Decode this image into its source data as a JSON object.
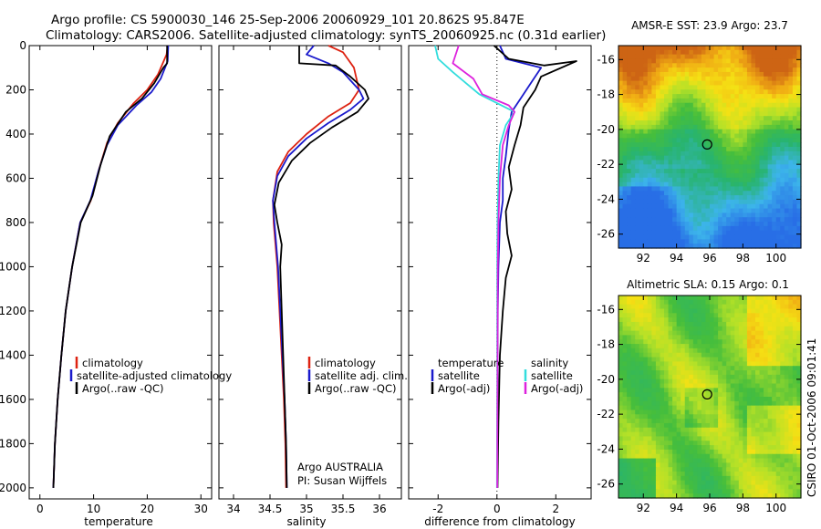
{
  "header": {
    "line1": "Argo profile: CS 5900030_146 25-Sep-2006 20060929_101 20.862S 95.847E",
    "line2": "Climatology: CARS2006. Satellite-adjusted climatology: synTS_20060925.nc (0.31d earlier)"
  },
  "colors": {
    "climatology": "#dd2211",
    "satellite": "#1a1acc",
    "argo": "#000000",
    "salinity_satellite": "#33dddd",
    "salinity_argo": "#dd22dd"
  },
  "chart_data": [
    {
      "type": "line",
      "xlabel": "temperature",
      "ylabel": "",
      "xlim": [
        -2,
        32
      ],
      "ylim": [
        2050,
        0
      ],
      "xticks": [
        "0",
        "10",
        "20",
        "30"
      ],
      "yticks": [
        "0",
        "200",
        "400",
        "600",
        "800",
        "1000",
        "1200",
        "1400",
        "1600",
        "1800",
        "2000"
      ],
      "legend": [
        "climatology",
        "satellite-adjusted climatology",
        "Argo(..raw -QC)"
      ],
      "legend_position": "lower-right",
      "series": [
        {
          "name": "climatology",
          "color": "climatology",
          "points": [
            [
              23.8,
              0
            ],
            [
              23.6,
              40
            ],
            [
              22,
              130
            ],
            [
              20,
              200
            ],
            [
              17.5,
              260
            ],
            [
              14.5,
              350
            ],
            [
              12.5,
              440
            ],
            [
              11,
              560
            ],
            [
              9.5,
              700
            ],
            [
              7.5,
              800
            ],
            [
              6,
              1000
            ],
            [
              4.8,
              1200
            ],
            [
              4,
              1400
            ],
            [
              3.3,
              1600
            ],
            [
              2.8,
              1800
            ],
            [
              2.5,
              2000
            ]
          ]
        },
        {
          "name": "satellite-adjusted climatology",
          "color": "satellite",
          "points": [
            [
              23.9,
              0
            ],
            [
              23.8,
              70
            ],
            [
              22.5,
              150
            ],
            [
              20.8,
              210
            ],
            [
              18,
              270
            ],
            [
              14.5,
              360
            ],
            [
              12.5,
              450
            ],
            [
              11,
              560
            ],
            [
              9.4,
              700
            ],
            [
              7.5,
              800
            ],
            [
              6,
              1000
            ],
            [
              4.8,
              1200
            ],
            [
              4,
              1400
            ],
            [
              3.3,
              1600
            ],
            [
              2.8,
              1800
            ],
            [
              2.5,
              2000
            ]
          ]
        },
        {
          "name": "Argo(..raw -QC)",
          "color": "argo",
          "points": [
            [
              23.7,
              0
            ],
            [
              23.7,
              80
            ],
            [
              23,
              100
            ],
            [
              21.3,
              170
            ],
            [
              19,
              240
            ],
            [
              16,
              300
            ],
            [
              13,
              410
            ],
            [
              11.3,
              540
            ],
            [
              9.8,
              680
            ],
            [
              7.6,
              800
            ],
            [
              6,
              1000
            ],
            [
              4.8,
              1200
            ],
            [
              4,
              1400
            ],
            [
              3.3,
              1600
            ],
            [
              2.8,
              1800
            ],
            [
              2.5,
              2000
            ]
          ]
        }
      ]
    },
    {
      "type": "line",
      "xlabel": "salinity",
      "ylabel": "",
      "xlim": [
        33.8,
        36.3
      ],
      "ylim": [
        2050,
        0
      ],
      "xticks": [
        "34",
        "34.5",
        "35",
        "35.5",
        "36"
      ],
      "legend": [
        "climatology",
        "satellite adj. clim.",
        "Argo(..raw -QC)"
      ],
      "legend_position": "lower-right",
      "annotations": [
        "Argo AUSTRALIA",
        "PI: Susan Wijffels"
      ],
      "series": [
        {
          "name": "climatology",
          "color": "climatology",
          "points": [
            [
              35.3,
              0
            ],
            [
              35.5,
              30
            ],
            [
              35.65,
              100
            ],
            [
              35.72,
              200
            ],
            [
              35.6,
              260
            ],
            [
              35.3,
              320
            ],
            [
              35.0,
              400
            ],
            [
              34.75,
              480
            ],
            [
              34.6,
              570
            ],
            [
              34.54,
              700
            ],
            [
              34.55,
              800
            ],
            [
              34.6,
              1000
            ],
            [
              34.63,
              1200
            ],
            [
              34.66,
              1400
            ],
            [
              34.69,
              1600
            ],
            [
              34.71,
              1800
            ],
            [
              34.72,
              2000
            ]
          ]
        },
        {
          "name": "satellite adj. clim.",
          "color": "satellite",
          "points": [
            [
              35.1,
              0
            ],
            [
              35.0,
              40
            ],
            [
              35.3,
              80
            ],
            [
              35.5,
              120
            ],
            [
              35.72,
              200
            ],
            [
              35.78,
              240
            ],
            [
              35.6,
              290
            ],
            [
              35.3,
              350
            ],
            [
              35.0,
              420
            ],
            [
              34.75,
              500
            ],
            [
              34.6,
              590
            ],
            [
              34.54,
              700
            ],
            [
              34.56,
              800
            ],
            [
              34.61,
              1000
            ],
            [
              34.64,
              1200
            ],
            [
              34.67,
              1400
            ],
            [
              34.7,
              1600
            ],
            [
              34.72,
              1800
            ],
            [
              34.73,
              2000
            ]
          ]
        },
        {
          "name": "Argo(..raw -QC)",
          "color": "argo",
          "points": [
            [
              34.9,
              0
            ],
            [
              34.9,
              80
            ],
            [
              35.4,
              90
            ],
            [
              35.6,
              140
            ],
            [
              35.8,
              200
            ],
            [
              35.85,
              240
            ],
            [
              35.7,
              300
            ],
            [
              35.35,
              370
            ],
            [
              35.05,
              440
            ],
            [
              34.8,
              520
            ],
            [
              34.62,
              620
            ],
            [
              34.56,
              720
            ],
            [
              34.6,
              800
            ],
            [
              34.66,
              900
            ],
            [
              34.64,
              1000
            ],
            [
              34.66,
              1200
            ],
            [
              34.68,
              1400
            ],
            [
              34.7,
              1600
            ],
            [
              34.72,
              1800
            ],
            [
              34.73,
              2000
            ]
          ]
        }
      ]
    },
    {
      "type": "line",
      "xlabel": "difference from climatology",
      "ylabel": "",
      "xlim": [
        -3,
        3.2
      ],
      "ylim": [
        2050,
        0
      ],
      "xticks": [
        "-2",
        "0",
        "2"
      ],
      "zero_line": "dotted",
      "legend_groups": [
        {
          "heading": "temperature",
          "entries": [
            "satellite",
            "Argo(-adj)"
          ]
        },
        {
          "heading": "salinity",
          "entries": [
            "satellite",
            "Argo(-adj)"
          ]
        }
      ],
      "legend_position": "lower-right",
      "series": [
        {
          "name": "temperature satellite",
          "color": "satellite",
          "points": [
            [
              0.1,
              0
            ],
            [
              0.3,
              60
            ],
            [
              1.5,
              100
            ],
            [
              1.2,
              160
            ],
            [
              0.8,
              240
            ],
            [
              0.5,
              300
            ],
            [
              0.4,
              380
            ],
            [
              0.3,
              500
            ],
            [
              0.2,
              600
            ],
            [
              0.2,
              700
            ],
            [
              0.1,
              800
            ],
            [
              0.05,
              1000
            ],
            [
              0.03,
              1200
            ],
            [
              0.02,
              1500
            ],
            [
              0.01,
              2000
            ]
          ]
        },
        {
          "name": "temperature Argo(-adj)",
          "color": "argo",
          "points": [
            [
              -0.1,
              0
            ],
            [
              0.4,
              60
            ],
            [
              1.6,
              90
            ],
            [
              2.7,
              70
            ],
            [
              1.5,
              140
            ],
            [
              1.3,
              200
            ],
            [
              0.9,
              280
            ],
            [
              0.8,
              360
            ],
            [
              0.6,
              450
            ],
            [
              0.4,
              550
            ],
            [
              0.5,
              650
            ],
            [
              0.3,
              750
            ],
            [
              0.35,
              850
            ],
            [
              0.5,
              950
            ],
            [
              0.3,
              1050
            ],
            [
              0.2,
              1200
            ],
            [
              0.1,
              1400
            ],
            [
              0.05,
              1700
            ],
            [
              0.02,
              2000
            ]
          ]
        },
        {
          "name": "salinity satellite",
          "color": "salinity_satellite",
          "points": [
            [
              -2.1,
              0
            ],
            [
              -2.0,
              60
            ],
            [
              -1.5,
              120
            ],
            [
              -0.6,
              220
            ],
            [
              0.3,
              280
            ],
            [
              0.6,
              300
            ],
            [
              0.3,
              360
            ],
            [
              0.1,
              450
            ],
            [
              0.05,
              600
            ],
            [
              0.02,
              800
            ],
            [
              0.01,
              1000
            ],
            [
              0.01,
              1500
            ],
            [
              0.0,
              2000
            ]
          ]
        },
        {
          "name": "salinity Argo(-adj)",
          "color": "salinity_argo",
          "points": [
            [
              -1.3,
              0
            ],
            [
              -1.5,
              80
            ],
            [
              -0.8,
              150
            ],
            [
              -0.5,
              220
            ],
            [
              0.4,
              270
            ],
            [
              0.6,
              300
            ],
            [
              0.4,
              360
            ],
            [
              0.2,
              450
            ],
            [
              0.1,
              600
            ],
            [
              0.05,
              800
            ],
            [
              0.03,
              1000
            ],
            [
              0.02,
              1500
            ],
            [
              0.01,
              2000
            ]
          ]
        }
      ]
    },
    {
      "type": "heatmap",
      "title": "AMSR-E SST: 23.9 Argo: 23.7",
      "xlim": [
        90.5,
        101.5
      ],
      "ylim": [
        -26.8,
        -15.2
      ],
      "xticks": [
        "92",
        "94",
        "96",
        "98",
        "100"
      ],
      "yticks": [
        "-16",
        "-18",
        "-20",
        "-22",
        "-24",
        "-26"
      ],
      "marker": {
        "lon": 95.847,
        "lat": -20.862
      }
    },
    {
      "type": "heatmap",
      "title": "Altimetric SLA: 0.15 Argo: 0.1",
      "xlim": [
        90.5,
        101.5
      ],
      "ylim": [
        -26.8,
        -15.2
      ],
      "xticks": [
        "92",
        "94",
        "96",
        "98",
        "100"
      ],
      "yticks": [
        "-16",
        "-18",
        "-20",
        "-22",
        "-24",
        "-26"
      ],
      "marker": {
        "lon": 95.847,
        "lat": -20.862
      }
    }
  ],
  "side_label": "CSIRO 01-Oct-2006 09:01:41"
}
